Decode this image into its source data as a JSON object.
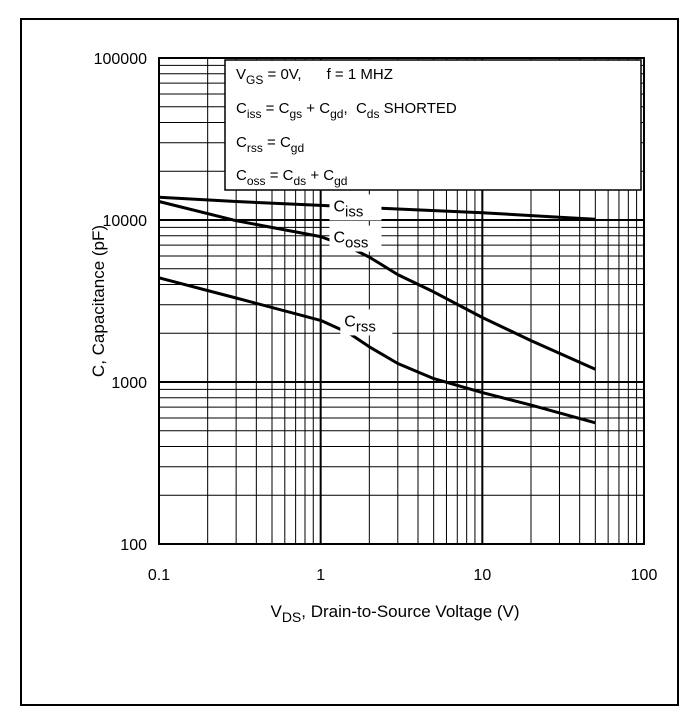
{
  "chart_data": {
    "type": "line",
    "x_scale": "log",
    "y_scale": "log",
    "xlim": [
      0.1,
      100
    ],
    "ylim": [
      100,
      100000
    ],
    "grid": true,
    "x_ticks": [
      "0.1",
      "1",
      "10",
      "100"
    ],
    "y_ticks": [
      "100",
      "1000",
      "10000",
      "100000"
    ],
    "xlabel": {
      "main": "V",
      "sub": "DS",
      "rest": ", Drain-to-Source Voltage (V)"
    },
    "ylabel": "C, Capacitance (pF)",
    "legend_box": {
      "line1": {
        "a": "V",
        "a_sub": "GS",
        "b": " = 0V,      f = 1 MHZ"
      },
      "line2": {
        "a": "C",
        "a_sub": "iss",
        "b": " = C",
        "b_sub": "gs",
        "c": " + C",
        "c_sub": "gd",
        "d": ",  C",
        "d_sub": "ds",
        "e": " SHORTED"
      },
      "line3": {
        "a": "C",
        "a_sub": "rss",
        "b": " = C",
        "b_sub": "gd"
      },
      "line4": {
        "a": "C",
        "a_sub": "oss",
        "b": " = C",
        "b_sub": "ds",
        "c": " + C",
        "c_sub": "gd"
      }
    },
    "series": [
      {
        "name": "Ciss",
        "label_main": "C",
        "label_sub": "iss",
        "x": [
          0.1,
          0.3,
          1,
          3,
          10,
          30,
          50
        ],
        "y": [
          13800,
          13000,
          12300,
          11700,
          11100,
          10400,
          10100
        ]
      },
      {
        "name": "Coss",
        "label_main": "C",
        "label_sub": "oss",
        "x": [
          0.1,
          0.3,
          1,
          1.5,
          2,
          3,
          5,
          10,
          20,
          50
        ],
        "y": [
          13000,
          9900,
          7900,
          6800,
          5900,
          4600,
          3600,
          2500,
          1800,
          1200
        ]
      },
      {
        "name": "Crss",
        "label_main": "C",
        "label_sub": "rss",
        "x": [
          0.1,
          0.3,
          1,
          1.5,
          2,
          3,
          5,
          10,
          20,
          50
        ],
        "y": [
          4400,
          3300,
          2400,
          2000,
          1650,
          1300,
          1050,
          860,
          720,
          560
        ]
      }
    ]
  }
}
